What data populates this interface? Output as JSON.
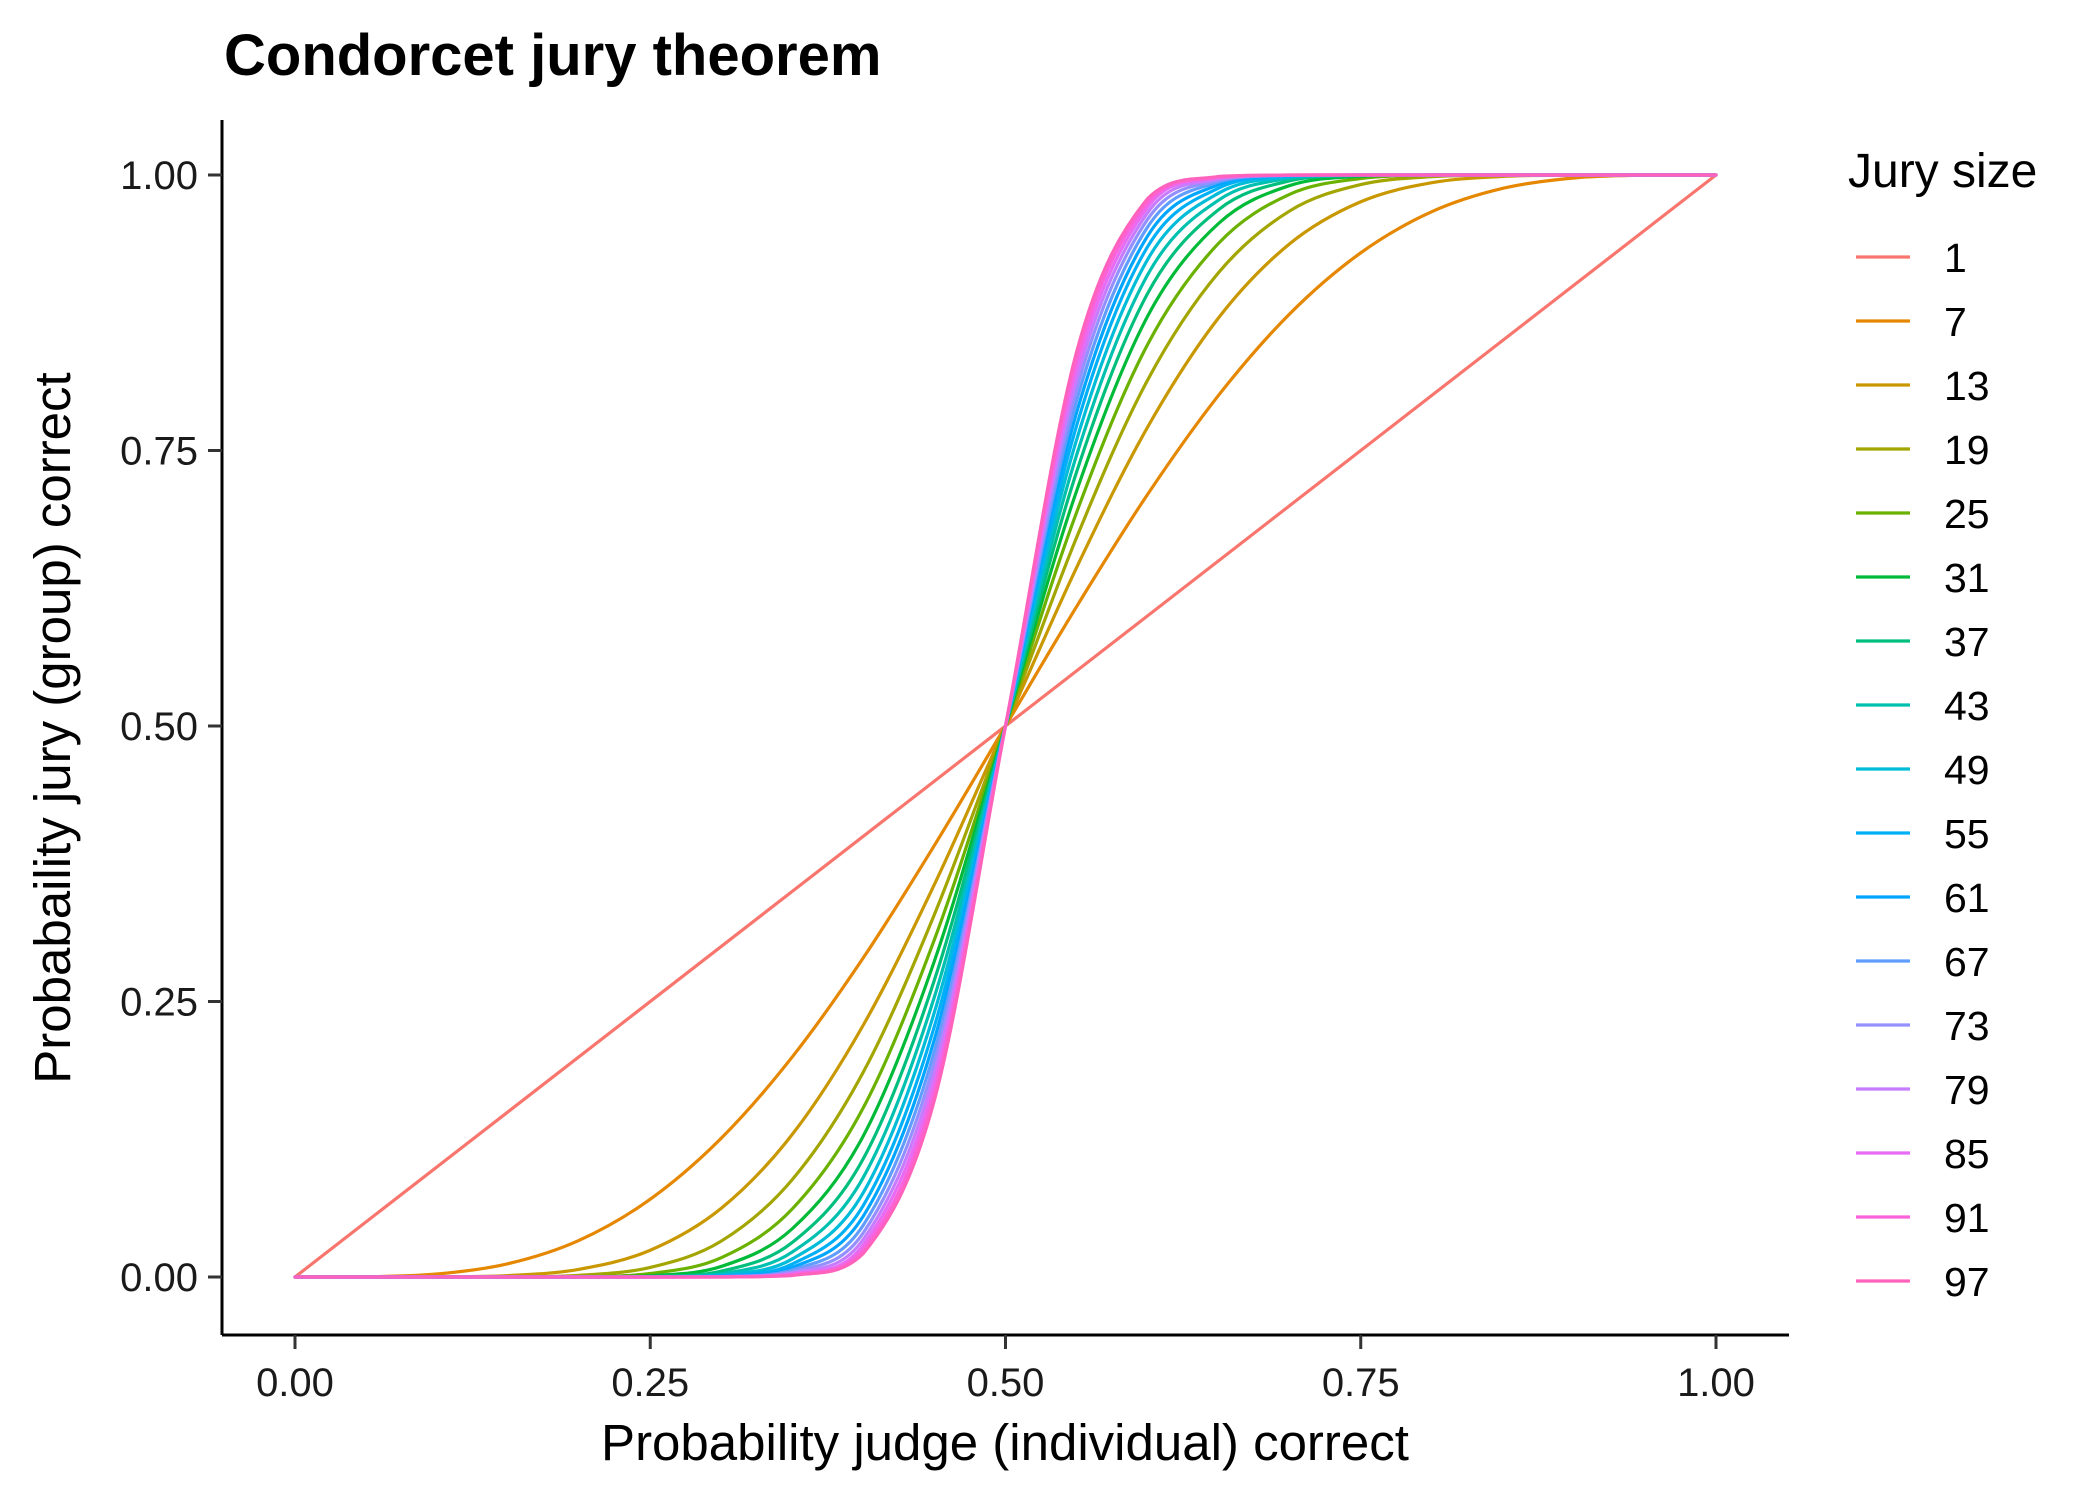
{
  "chart_data": {
    "type": "line",
    "title": "Condorcet jury theorem",
    "xlabel": "Probability judge (individual) correct",
    "ylabel": "Probabaility jury (group) correct",
    "xlim": [
      0,
      1
    ],
    "ylim": [
      0,
      1
    ],
    "xticks": [
      "0.00",
      "0.25",
      "0.50",
      "0.75",
      "1.00"
    ],
    "yticks": [
      "0.00",
      "0.25",
      "0.50",
      "0.75",
      "1.00"
    ],
    "grid": false,
    "legend": {
      "title": "Jury size",
      "placement": "right"
    },
    "x": [
      0.0,
      0.05,
      0.1,
      0.15,
      0.2,
      0.25,
      0.3,
      0.35,
      0.4,
      0.45,
      0.5,
      0.55,
      0.6,
      0.65,
      0.7,
      0.75,
      0.8,
      0.85,
      0.9,
      0.95,
      1.0
    ],
    "series": [
      {
        "name": "1",
        "color": "#F8766D",
        "values": [
          0.0,
          0.05,
          0.1,
          0.15,
          0.2,
          0.25,
          0.3,
          0.35,
          0.4,
          0.45,
          0.5,
          0.55,
          0.6,
          0.65,
          0.7,
          0.75,
          0.8,
          0.85,
          0.9,
          0.95,
          1.0
        ]
      },
      {
        "name": "7",
        "color": "#E58700",
        "values": [
          0.0,
          0.0002,
          0.0027,
          0.0121,
          0.0333,
          0.0706,
          0.126,
          0.1998,
          0.2898,
          0.3917,
          0.5,
          0.6083,
          0.7102,
          0.8002,
          0.874,
          0.9294,
          0.9667,
          0.9879,
          0.9973,
          0.9998,
          1.0
        ]
      },
      {
        "name": "13",
        "color": "#C99800",
        "values": [
          0.0,
          0.0,
          0.0001,
          0.0013,
          0.007,
          0.0243,
          0.0624,
          0.1295,
          0.2288,
          0.3563,
          0.5,
          0.6437,
          0.7712,
          0.8705,
          0.9376,
          0.9757,
          0.993,
          0.9987,
          0.9999,
          1.0,
          1.0
        ]
      },
      {
        "name": "19",
        "color": "#A3A500",
        "values": [
          0.0,
          0.0,
          0.0,
          0.0001,
          0.0015,
          0.0087,
          0.0326,
          0.0885,
          0.1861,
          0.3291,
          0.5,
          0.6709,
          0.8139,
          0.9115,
          0.9674,
          0.9913,
          0.9985,
          0.9999,
          1.0,
          1.0,
          1.0
        ]
      },
      {
        "name": "25",
        "color": "#6BB100",
        "values": [
          0.0,
          0.0,
          0.0,
          0.0,
          0.0003,
          0.0032,
          0.0175,
          0.0619,
          0.1538,
          0.3063,
          0.5,
          0.6937,
          0.8462,
          0.9381,
          0.9825,
          0.9968,
          0.9997,
          1.0,
          1.0,
          1.0,
          1.0
        ]
      },
      {
        "name": "31",
        "color": "#00BA38",
        "values": [
          0.0,
          0.0,
          0.0,
          0.0,
          0.0001,
          0.0012,
          0.0096,
          0.0439,
          0.1282,
          0.2869,
          0.5,
          0.7131,
          0.8718,
          0.9561,
          0.9904,
          0.9988,
          0.9999,
          1.0,
          1.0,
          1.0,
          1.0
        ]
      },
      {
        "name": "37",
        "color": "#00BF7D",
        "values": [
          0.0,
          0.0,
          0.0,
          0.0,
          0.0,
          0.0005,
          0.0053,
          0.0314,
          0.1075,
          0.2696,
          0.5,
          0.7304,
          0.8925,
          0.9686,
          0.9947,
          0.9995,
          1.0,
          1.0,
          1.0,
          1.0,
          1.0
        ]
      },
      {
        "name": "43",
        "color": "#00C0AF",
        "values": [
          0.0,
          0.0,
          0.0,
          0.0,
          0.0,
          0.0002,
          0.003,
          0.0227,
          0.0906,
          0.2543,
          0.5,
          0.7457,
          0.9094,
          0.9773,
          0.997,
          0.9998,
          1.0,
          1.0,
          1.0,
          1.0,
          1.0
        ]
      },
      {
        "name": "49",
        "color": "#00BCD8",
        "values": [
          0.0,
          0.0,
          0.0,
          0.0,
          0.0,
          0.0001,
          0.0017,
          0.0164,
          0.0767,
          0.2404,
          0.5,
          0.7596,
          0.9233,
          0.9836,
          0.9983,
          0.9999,
          1.0,
          1.0,
          1.0,
          1.0,
          1.0
        ]
      },
      {
        "name": "55",
        "color": "#00B0F6",
        "values": [
          0.0,
          0.0,
          0.0,
          0.0,
          0.0,
          0.0,
          0.0009,
          0.0119,
          0.0651,
          0.2276,
          0.5,
          0.7724,
          0.9349,
          0.9881,
          0.9991,
          1.0,
          1.0,
          1.0,
          1.0,
          1.0,
          1.0
        ]
      },
      {
        "name": "61",
        "color": "#00A5FF",
        "values": [
          0.0,
          0.0,
          0.0,
          0.0,
          0.0,
          0.0,
          0.0005,
          0.0087,
          0.0554,
          0.2158,
          0.5,
          0.7842,
          0.9446,
          0.9913,
          0.9995,
          1.0,
          1.0,
          1.0,
          1.0,
          1.0,
          1.0
        ]
      },
      {
        "name": "67",
        "color": "#619CFF",
        "values": [
          0.0,
          0.0,
          0.0,
          0.0,
          0.0,
          0.0,
          0.0003,
          0.0063,
          0.0472,
          0.2049,
          0.5,
          0.7951,
          0.9528,
          0.9937,
          0.9997,
          1.0,
          1.0,
          1.0,
          1.0,
          1.0,
          1.0
        ]
      },
      {
        "name": "73",
        "color": "#9590FF",
        "values": [
          0.0,
          0.0,
          0.0,
          0.0,
          0.0,
          0.0,
          0.0002,
          0.0046,
          0.0402,
          0.1948,
          0.5,
          0.8052,
          0.9598,
          0.9954,
          0.9998,
          1.0,
          1.0,
          1.0,
          1.0,
          1.0,
          1.0
        ]
      },
      {
        "name": "79",
        "color": "#C77CFF",
        "values": [
          0.0,
          0.0,
          0.0,
          0.0,
          0.0,
          0.0,
          0.0001,
          0.0034,
          0.0343,
          0.1854,
          0.5,
          0.8146,
          0.9657,
          0.9966,
          0.9999,
          1.0,
          1.0,
          1.0,
          1.0,
          1.0,
          1.0
        ]
      },
      {
        "name": "85",
        "color": "#E76BF3",
        "values": [
          0.0,
          0.0,
          0.0,
          0.0,
          0.0,
          0.0,
          0.0001,
          0.0025,
          0.0293,
          0.1766,
          0.5,
          0.8234,
          0.9707,
          0.9975,
          0.9999,
          1.0,
          1.0,
          1.0,
          1.0,
          1.0,
          1.0
        ]
      },
      {
        "name": "91",
        "color": "#FA62DB",
        "values": [
          0.0,
          0.0,
          0.0,
          0.0,
          0.0,
          0.0,
          0.0,
          0.0018,
          0.025,
          0.1684,
          0.5,
          0.8316,
          0.975,
          0.9982,
          1.0,
          1.0,
          1.0,
          1.0,
          1.0,
          1.0,
          1.0
        ]
      },
      {
        "name": "97",
        "color": "#FF62BC",
        "values": [
          0.0,
          0.0,
          0.0,
          0.0,
          0.0,
          0.0,
          0.0,
          0.0013,
          0.0214,
          0.1607,
          0.5,
          0.8393,
          0.9786,
          0.9987,
          1.0,
          1.0,
          1.0,
          1.0,
          1.0,
          1.0,
          1.0
        ]
      }
    ]
  }
}
